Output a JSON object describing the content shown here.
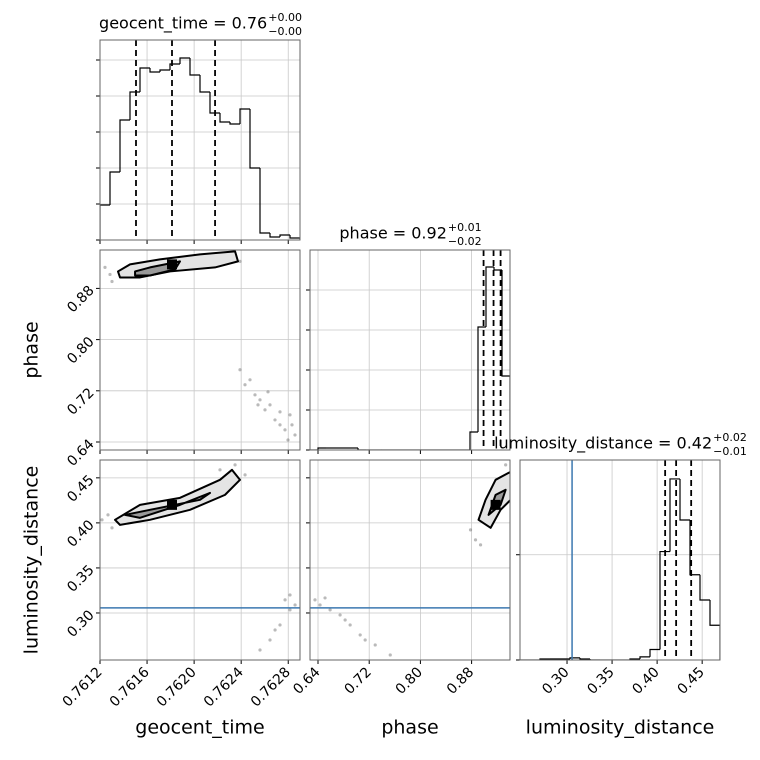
{
  "chart_data": {
    "type": "corner",
    "parameters": [
      {
        "label": "geocent_time",
        "title": {
          "text": "geocent_time = 0.76",
          "upper": "+0.00",
          "lower": "−0.00"
        },
        "lim": [
          0.7612,
          0.7629
        ],
        "ticks": [
          0.7612,
          0.7616,
          {
            "value": 0.762,
            "label": "0.7620"
          },
          0.7624,
          0.7628
        ],
        "quantiles": [
          0.761506,
          0.761812,
          0.762178
        ],
        "hist": {
          "bins": [
            0.7612,
            0.761285,
            0.76137,
            0.761455,
            0.76154,
            0.761625,
            0.76171,
            0.761795,
            0.76188,
            0.761965,
            0.76205,
            0.762135,
            0.76222,
            0.762305,
            0.76239,
            0.762475,
            0.76256,
            0.762645,
            0.76273,
            0.762815,
            0.7629
          ],
          "counts": [
            35,
            68,
            120,
            148,
            172,
            168,
            170,
            176,
            182,
            165,
            148,
            127,
            118,
            116,
            131,
            72,
            7,
            3,
            5,
            2
          ],
          "ylim": [
            0,
            200
          ],
          "yticks": [
            0,
            36,
            72,
            108,
            144,
            180
          ]
        }
      },
      {
        "label": "phase",
        "title": {
          "text": "phase = 0.92",
          "upper": "+0.01",
          "lower": "−0.02"
        },
        "lim": [
          0.6275,
          0.94
        ],
        "ticks": [
          0.64,
          0.72,
          {
            "value": 0.8,
            "label": "0.80"
          },
          0.88
        ],
        "quantiles": [
          0.8987,
          0.9143,
          0.9253
        ],
        "hist": {
          "bins": [
            0.6275,
            0.64,
            0.6525,
            0.665,
            0.6775,
            0.69,
            0.7025,
            0.715,
            0.7275,
            0.74,
            0.7525,
            0.765,
            0.7775,
            0.79,
            0.8025,
            0.815,
            0.8275,
            0.84,
            0.8525,
            0.865,
            0.8775,
            0.89,
            0.9025,
            0.915,
            0.9275,
            0.94
          ],
          "counts": [
            0,
            2,
            2,
            2,
            2,
            2,
            0,
            0,
            0,
            0,
            0,
            0,
            0,
            0,
            0,
            0,
            0,
            0,
            0,
            0,
            18,
            123,
            183,
            180,
            74
          ],
          "ylim": [
            0,
            200
          ],
          "yticks": [
            0,
            40,
            80,
            120,
            160
          ]
        }
      },
      {
        "label": "luminosity_distance",
        "title": {
          "text": "luminosity_distance = 0.42",
          "upper": "+0.02",
          "lower": "−0.01"
        },
        "lim": [
          0.2478,
          0.4698
        ],
        "ticks": [
          {
            "value": 0.3,
            "label": "0.30"
          },
          0.35,
          {
            "value": 0.4,
            "label": "0.40"
          },
          0.45
        ],
        "quantiles": [
          0.4089,
          0.4211,
          0.4378
        ],
        "truth": 0.3056,
        "hist": {
          "bins": [
            0.2478,
            0.2589,
            0.27,
            0.2811,
            0.2922,
            0.3033,
            0.3144,
            0.3255,
            0.3366,
            0.3477,
            0.3588,
            0.3699,
            0.381,
            0.3921,
            0.4032,
            0.4143,
            0.4254,
            0.4365,
            0.4476,
            0.4587,
            0.4698
          ],
          "counts": [
            0,
            0,
            1,
            1,
            1,
            2,
            1,
            0,
            0,
            0,
            0,
            1,
            3,
            10,
            103,
            172,
            133,
            81,
            57,
            33
          ],
          "ylim": [
            0,
            190
          ],
          "yticks": [
            0,
            100
          ]
        }
      }
    ],
    "truth_color": "#3b78b0",
    "point_color": "#666666",
    "contour_fills": [
      "#e4e4e4",
      "#9a9a9a"
    ],
    "grid": true,
    "pairs": [
      [
        {
          "points": {
            "x": [
              0.7612425,
              0.761285,
              0.761302,
              0.762305,
              0.76239,
              0.76239,
              0.7624325,
              0.762475,
              0.7625175,
              0.762543,
              0.76256,
              0.7626025,
              0.762628,
              0.762645,
              0.7626875,
              0.76273,
              0.76273,
              0.7627725,
              0.762798,
              0.762815,
              0.762832,
              0.7628575
            ],
            "y": [
              0.9128,
              0.9018,
              0.8908,
              0.9332,
              0.9222,
              0.7529,
              0.7294,
              0.7372,
              0.7137,
              0.698,
              0.7059,
              0.6902,
              0.7184,
              0.698,
              0.6745,
              0.6667,
              0.6871,
              0.6589,
              0.6432,
              0.6824,
              0.6667,
              0.651
            ]
          },
          "contours": [
            {
              "x": [
                0.761353,
                0.761455,
                0.76171,
                0.76205,
                0.762348,
                0.762373,
                0.762178,
                0.761795,
                0.76154,
                0.76137
              ],
              "y": [
                0.9065,
                0.9175,
                0.9253,
                0.9332,
                0.9379,
                0.9222,
                0.9128,
                0.9065,
                0.8971,
                0.8971
              ]
            },
            {
              "x": [
                0.761498,
                0.761625,
                0.76188,
                0.761838,
                0.761625,
                0.761498
              ],
              "y": [
                0.9065,
                0.9128,
                0.9222,
                0.9097,
                0.9002,
                0.9002
              ]
            }
          ],
          "peak": {
            "x": 0.761812,
            "y": 0.9175
          }
        }
      ],
      [
        {
          "points": {
            "x": [
              0.761217,
              0.761268,
              0.761302,
              0.762348,
              0.762433,
              0.76222,
              0.762773,
              0.762815,
              0.762858,
              0.762815,
              0.76273,
              0.762688,
              0.762645,
              0.76256
            ],
            "y": [
              0.4034,
              0.4089,
              0.3945,
              0.4644,
              0.4533,
              0.4589,
              0.3145,
              0.3034,
              0.3089,
              0.32,
              0.2867,
              0.2811,
              0.27,
              0.2589
            ]
          },
          "contours": [
            {
              "x": [
                0.7613275,
                0.76154,
                0.76188,
                0.76222,
                0.762322,
                0.76239,
                0.7622625,
                0.761965,
                0.761625,
                0.76137
              ],
              "y": [
                0.4034,
                0.42,
                0.4278,
                0.4478,
                0.4589,
                0.4478,
                0.4311,
                0.4145,
                0.4034,
                0.3978
              ]
            },
            {
              "x": [
                0.7614125,
                0.761625,
                0.76205,
                0.762135,
                0.76188,
                0.76154
              ],
              "y": [
                0.4089,
                0.4145,
                0.4256,
                0.4333,
                0.42,
                0.4056
              ]
            }
          ],
          "peak": {
            "x": 0.761812,
            "y": 0.42
          }
        },
        {
          "points": {
            "x": [
              0.6353,
              0.6432,
              0.651,
              0.6589,
              0.6745,
              0.6824,
              0.6902,
              0.7059,
              0.7137,
              0.7294,
              0.7529,
              0.8783,
              0.8861,
              0.894,
              0.9332
            ],
            "y": [
              0.3145,
              0.3089,
              0.3167,
              0.3034,
              0.2978,
              0.2922,
              0.2867,
              0.2756,
              0.27,
              0.2645,
              0.2534,
              0.3922,
              0.3811,
              0.3756,
              0.4644
            ]
          },
          "contours": [
            {
              "x": [
                0.8908,
                0.9018,
                0.9175,
                0.941,
                0.941,
                0.9253,
                0.9097
              ],
              "y": [
                0.4034,
                0.4256,
                0.4478,
                0.4567,
                0.4256,
                0.4145,
                0.3945
              ]
            },
            {
              "x": [
                0.9065,
                0.9175,
                0.9332,
                0.9253
              ],
              "y": [
                0.4089,
                0.4311,
                0.4367,
                0.42
              ]
            }
          ],
          "peak": {
            "x": 0.9175,
            "y": 0.42
          }
        }
      ]
    ]
  }
}
